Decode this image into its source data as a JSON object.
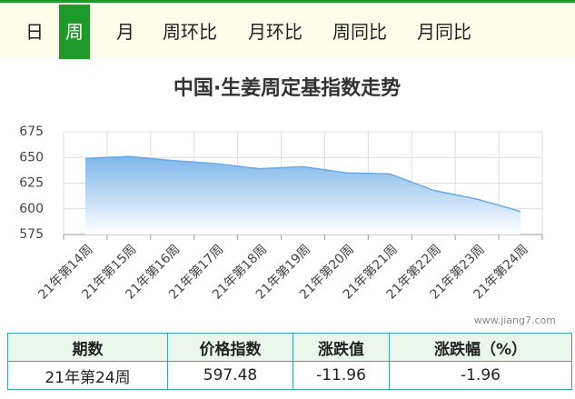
{
  "tabs": [
    "日",
    "周",
    "月",
    "周环比",
    "月环比",
    "周同比",
    "月同比"
  ],
  "active_tab": 1,
  "chart_data": {
    "type": "area",
    "title": "中国·生姜周定基指数走势",
    "categories": [
      "21年第14周",
      "21年第15周",
      "21年第16周",
      "21年第17周",
      "21年第18周",
      "21年第19周",
      "21年第20周",
      "21年第21周",
      "21年第22周",
      "21年第23周",
      "21年第24周"
    ],
    "values": [
      649,
      651,
      647,
      644,
      639,
      641,
      635,
      634,
      618,
      609.44,
      597.48
    ],
    "color": "#6aaae4",
    "ylim": [
      575,
      675
    ],
    "yticks": [
      575,
      600,
      625,
      650,
      675
    ],
    "grid": true
  },
  "watermark": "www.jiang7.com",
  "table": {
    "header": [
      "期数",
      "价格指数",
      "涨跌值",
      "涨跌幅（%）"
    ],
    "rows": [
      [
        "21年第24周",
        "597.48",
        "-11.96",
        "-1.96"
      ]
    ]
  }
}
